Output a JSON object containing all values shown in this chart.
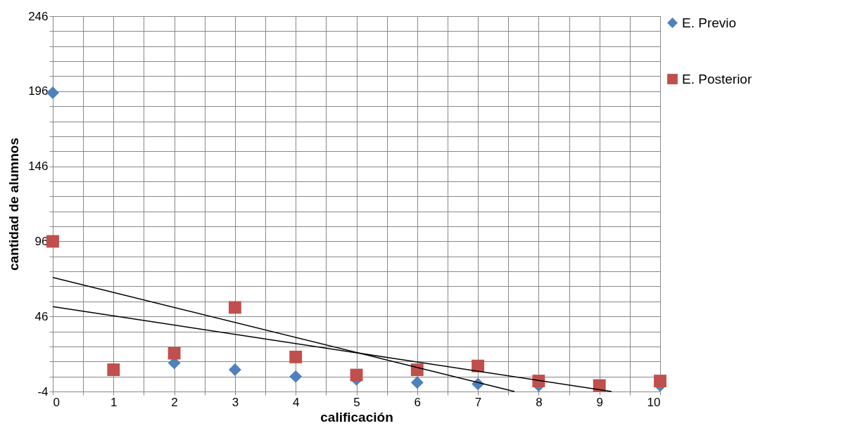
{
  "chart_data": {
    "type": "scatter",
    "xlabel": "calificación",
    "ylabel": "cantidad de alumnos",
    "x": [
      0,
      1,
      2,
      3,
      4,
      5,
      6,
      7,
      8,
      9,
      10
    ],
    "xlim": [
      0,
      10
    ],
    "xticks": [
      0,
      {
        "value": 0.5,
        "label": null
      },
      1,
      {
        "value": 1.5,
        "label": null
      },
      2,
      {
        "value": 2.5,
        "label": null
      },
      3,
      {
        "value": 3.5,
        "label": null
      },
      4,
      {
        "value": 4.5,
        "label": null
      },
      5,
      {
        "value": 5.5,
        "label": null
      },
      6,
      {
        "value": 6.5,
        "label": null
      },
      7,
      {
        "value": 7.5,
        "label": null
      },
      8,
      {
        "value": 8.5,
        "label": null
      },
      9,
      {
        "value": 9.5,
        "label": null
      },
      10
    ],
    "ylim": [
      -4,
      246
    ],
    "yticks": [
      -4,
      {
        "value": 6,
        "label": null
      },
      {
        "value": 16,
        "label": null
      },
      {
        "value": 26,
        "label": null
      },
      {
        "value": 36,
        "label": null
      },
      46,
      {
        "value": 56,
        "label": null
      },
      {
        "value": 66,
        "label": null
      },
      {
        "value": 76,
        "label": null
      },
      {
        "value": 86,
        "label": null
      },
      96,
      {
        "value": 106,
        "label": null
      },
      {
        "value": 116,
        "label": null
      },
      {
        "value": 126,
        "label": null
      },
      {
        "value": 136,
        "label": null
      },
      146,
      {
        "value": 156,
        "label": null
      },
      {
        "value": 166,
        "label": null
      },
      {
        "value": 176,
        "label": null
      },
      {
        "value": 186,
        "label": null
      },
      196,
      {
        "value": 206,
        "label": null
      },
      {
        "value": 216,
        "label": null
      },
      {
        "value": 226,
        "label": null
      },
      {
        "value": 236,
        "label": null
      },
      246
    ],
    "grid": true,
    "legend": "right",
    "series": [
      {
        "name": "E. Previo",
        "color": "#4f81bd",
        "marker": "diamond",
        "values": [
          195,
          null,
          15,
          10.5,
          6,
          4,
          2,
          1,
          0,
          null,
          0
        ]
      },
      {
        "name": "E. Posterior",
        "color": "#c0504d",
        "marker": "square",
        "values": [
          96,
          10.5,
          21.5,
          52,
          19,
          7,
          10.5,
          13,
          3,
          0,
          3
        ]
      },
      {
        "type": "line",
        "color": "#000000",
        "x": [
          0,
          7.6
        ],
        "values": [
          72,
          -4
        ],
        "marker": "none"
      },
      {
        "type": "line",
        "color": "#000000",
        "x": [
          0,
          9.2
        ],
        "values": [
          52.5,
          -4
        ],
        "marker": "none"
      }
    ]
  }
}
